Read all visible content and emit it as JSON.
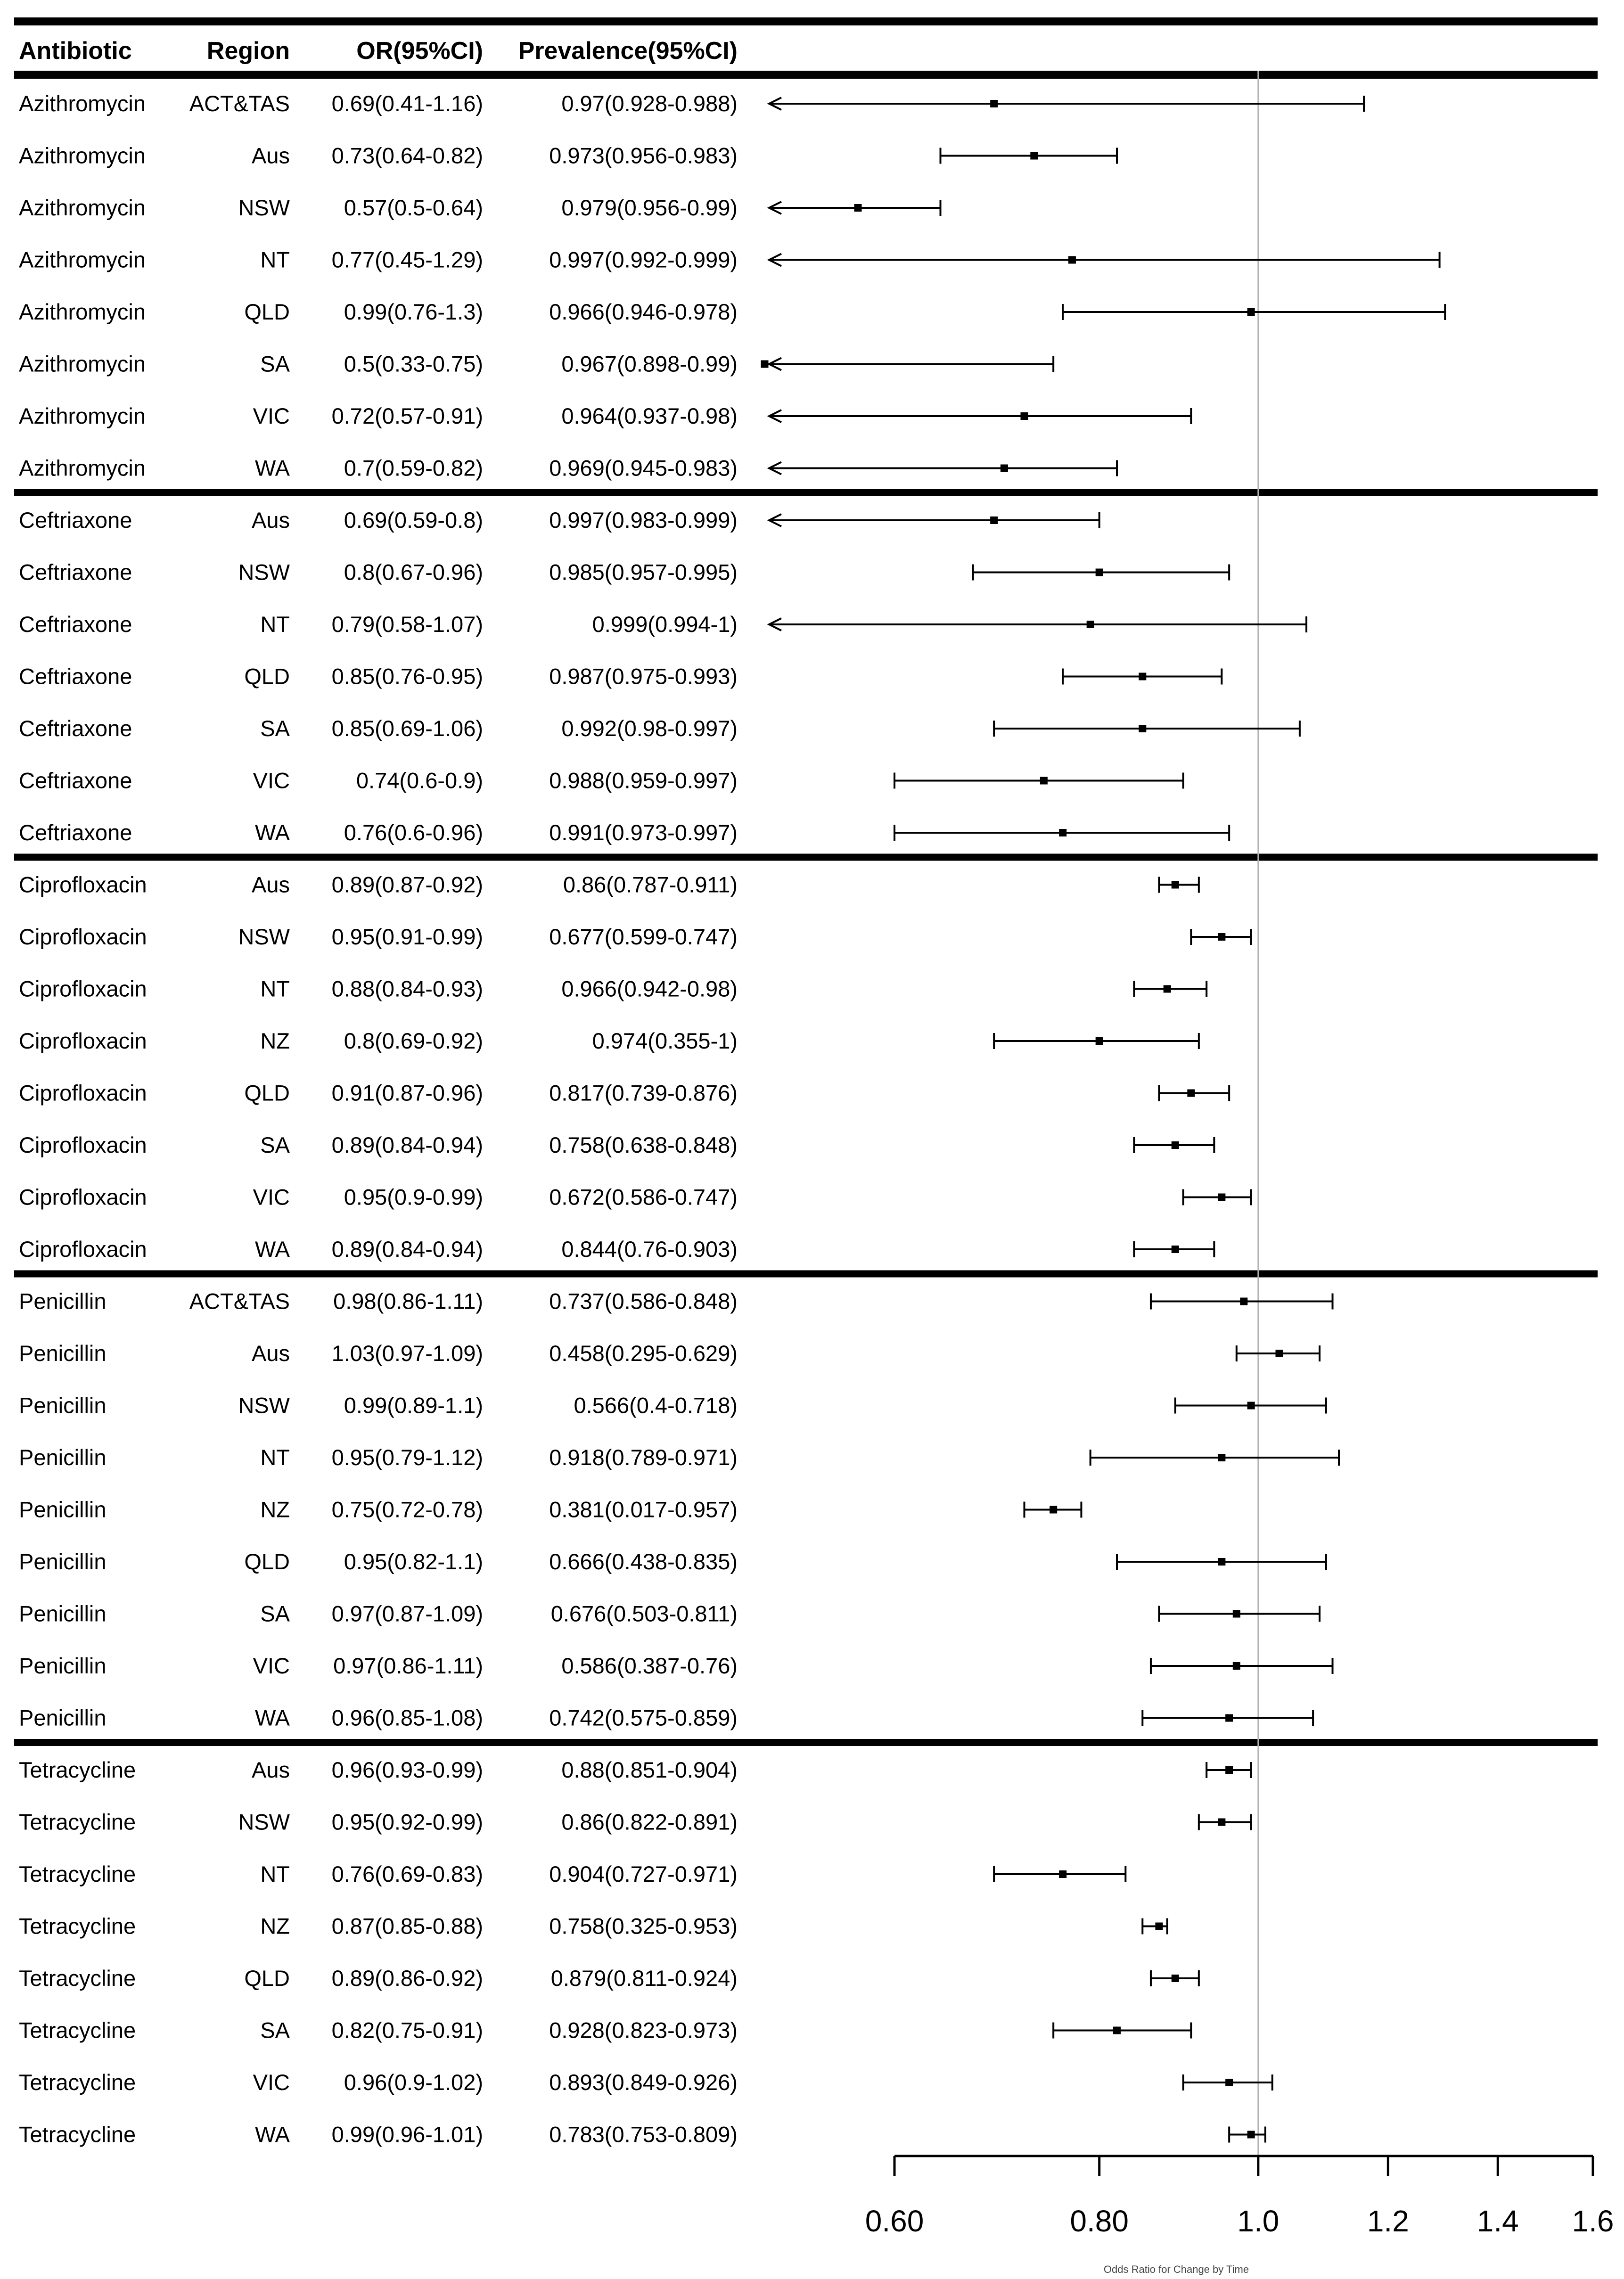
{
  "chart_data": {
    "type": "forest",
    "headers": [
      "Antibiotic",
      "Region",
      "OR(95%CI)",
      "Prevalence(95%CI)"
    ],
    "xlabel": "Odds Ratio for Change by Time",
    "x_scale": "log",
    "xlim": [
      0.6,
      1.6
    ],
    "reference_line": 1.0,
    "ticks": [
      {
        "value": 0.6,
        "label": "0.60"
      },
      {
        "value": 0.8,
        "label": "0.80"
      },
      {
        "value": 1.0,
        "label": "1.0"
      },
      {
        "value": 1.2,
        "label": "1.2"
      },
      {
        "value": 1.4,
        "label": "1.4"
      },
      {
        "value": 1.6,
        "label": "1.6"
      }
    ],
    "rows": [
      {
        "antibiotic": "Azithromycin",
        "region": "ACT&TAS",
        "or_text": "0.69(0.41-1.16)",
        "prev_text": "0.97(0.928-0.988)",
        "or": 0.69,
        "lo": 0.41,
        "hi": 1.16
      },
      {
        "antibiotic": "Azithromycin",
        "region": "Aus",
        "or_text": "0.73(0.64-0.82)",
        "prev_text": "0.973(0.956-0.983)",
        "or": 0.73,
        "lo": 0.64,
        "hi": 0.82
      },
      {
        "antibiotic": "Azithromycin",
        "region": "NSW",
        "or_text": "0.57(0.5-0.64)",
        "prev_text": "0.979(0.956-0.99)",
        "or": 0.57,
        "lo": 0.5,
        "hi": 0.64
      },
      {
        "antibiotic": "Azithromycin",
        "region": "NT",
        "or_text": "0.77(0.45-1.29)",
        "prev_text": "0.997(0.992-0.999)",
        "or": 0.77,
        "lo": 0.45,
        "hi": 1.29
      },
      {
        "antibiotic": "Azithromycin",
        "region": "QLD",
        "or_text": "0.99(0.76-1.3)",
        "prev_text": "0.966(0.946-0.978)",
        "or": 0.99,
        "lo": 0.76,
        "hi": 1.3
      },
      {
        "antibiotic": "Azithromycin",
        "region": "SA",
        "or_text": "0.5(0.33-0.75)",
        "prev_text": "0.967(0.898-0.99)",
        "or": 0.5,
        "lo": 0.33,
        "hi": 0.75
      },
      {
        "antibiotic": "Azithromycin",
        "region": "VIC",
        "or_text": "0.72(0.57-0.91)",
        "prev_text": "0.964(0.937-0.98)",
        "or": 0.72,
        "lo": 0.57,
        "hi": 0.91
      },
      {
        "antibiotic": "Azithromycin",
        "region": "WA",
        "or_text": "0.7(0.59-0.82)",
        "prev_text": "0.969(0.945-0.983)",
        "or": 0.7,
        "lo": 0.59,
        "hi": 0.82
      },
      {
        "antibiotic": "Ceftriaxone",
        "region": "Aus",
        "or_text": "0.69(0.59-0.8)",
        "prev_text": "0.997(0.983-0.999)",
        "or": 0.69,
        "lo": 0.59,
        "hi": 0.8
      },
      {
        "antibiotic": "Ceftriaxone",
        "region": "NSW",
        "or_text": "0.8(0.67-0.96)",
        "prev_text": "0.985(0.957-0.995)",
        "or": 0.8,
        "lo": 0.67,
        "hi": 0.96
      },
      {
        "antibiotic": "Ceftriaxone",
        "region": "NT",
        "or_text": "0.79(0.58-1.07)",
        "prev_text": "0.999(0.994-1)",
        "or": 0.79,
        "lo": 0.58,
        "hi": 1.07
      },
      {
        "antibiotic": "Ceftriaxone",
        "region": "QLD",
        "or_text": "0.85(0.76-0.95)",
        "prev_text": "0.987(0.975-0.993)",
        "or": 0.85,
        "lo": 0.76,
        "hi": 0.95
      },
      {
        "antibiotic": "Ceftriaxone",
        "region": "SA",
        "or_text": "0.85(0.69-1.06)",
        "prev_text": "0.992(0.98-0.997)",
        "or": 0.85,
        "lo": 0.69,
        "hi": 1.06
      },
      {
        "antibiotic": "Ceftriaxone",
        "region": "VIC",
        "or_text": "0.74(0.6-0.9)",
        "prev_text": "0.988(0.959-0.997)",
        "or": 0.74,
        "lo": 0.6,
        "hi": 0.9
      },
      {
        "antibiotic": "Ceftriaxone",
        "region": "WA",
        "or_text": "0.76(0.6-0.96)",
        "prev_text": "0.991(0.973-0.997)",
        "or": 0.76,
        "lo": 0.6,
        "hi": 0.96
      },
      {
        "antibiotic": "Ciprofloxacin",
        "region": "Aus",
        "or_text": "0.89(0.87-0.92)",
        "prev_text": "0.86(0.787-0.911)",
        "or": 0.89,
        "lo": 0.87,
        "hi": 0.92
      },
      {
        "antibiotic": "Ciprofloxacin",
        "region": "NSW",
        "or_text": "0.95(0.91-0.99)",
        "prev_text": "0.677(0.599-0.747)",
        "or": 0.95,
        "lo": 0.91,
        "hi": 0.99
      },
      {
        "antibiotic": "Ciprofloxacin",
        "region": "NT",
        "or_text": "0.88(0.84-0.93)",
        "prev_text": "0.966(0.942-0.98)",
        "or": 0.88,
        "lo": 0.84,
        "hi": 0.93
      },
      {
        "antibiotic": "Ciprofloxacin",
        "region": "NZ",
        "or_text": "0.8(0.69-0.92)",
        "prev_text": "0.974(0.355-1)",
        "or": 0.8,
        "lo": 0.69,
        "hi": 0.92
      },
      {
        "antibiotic": "Ciprofloxacin",
        "region": "QLD",
        "or_text": "0.91(0.87-0.96)",
        "prev_text": "0.817(0.739-0.876)",
        "or": 0.91,
        "lo": 0.87,
        "hi": 0.96
      },
      {
        "antibiotic": "Ciprofloxacin",
        "region": "SA",
        "or_text": "0.89(0.84-0.94)",
        "prev_text": "0.758(0.638-0.848)",
        "or": 0.89,
        "lo": 0.84,
        "hi": 0.94
      },
      {
        "antibiotic": "Ciprofloxacin",
        "region": "VIC",
        "or_text": "0.95(0.9-0.99)",
        "prev_text": "0.672(0.586-0.747)",
        "or": 0.95,
        "lo": 0.9,
        "hi": 0.99
      },
      {
        "antibiotic": "Ciprofloxacin",
        "region": "WA",
        "or_text": "0.89(0.84-0.94)",
        "prev_text": "0.844(0.76-0.903)",
        "or": 0.89,
        "lo": 0.84,
        "hi": 0.94
      },
      {
        "antibiotic": "Penicillin",
        "region": "ACT&TAS",
        "or_text": "0.98(0.86-1.11)",
        "prev_text": "0.737(0.586-0.848)",
        "or": 0.98,
        "lo": 0.86,
        "hi": 1.11
      },
      {
        "antibiotic": "Penicillin",
        "region": "Aus",
        "or_text": "1.03(0.97-1.09)",
        "prev_text": "0.458(0.295-0.629)",
        "or": 1.03,
        "lo": 0.97,
        "hi": 1.09
      },
      {
        "antibiotic": "Penicillin",
        "region": "NSW",
        "or_text": "0.99(0.89-1.1)",
        "prev_text": "0.566(0.4-0.718)",
        "or": 0.99,
        "lo": 0.89,
        "hi": 1.1
      },
      {
        "antibiotic": "Penicillin",
        "region": "NT",
        "or_text": "0.95(0.79-1.12)",
        "prev_text": "0.918(0.789-0.971)",
        "or": 0.95,
        "lo": 0.79,
        "hi": 1.12
      },
      {
        "antibiotic": "Penicillin",
        "region": "NZ",
        "or_text": "0.75(0.72-0.78)",
        "prev_text": "0.381(0.017-0.957)",
        "or": 0.75,
        "lo": 0.72,
        "hi": 0.78
      },
      {
        "antibiotic": "Penicillin",
        "region": "QLD",
        "or_text": "0.95(0.82-1.1)",
        "prev_text": "0.666(0.438-0.835)",
        "or": 0.95,
        "lo": 0.82,
        "hi": 1.1
      },
      {
        "antibiotic": "Penicillin",
        "region": "SA",
        "or_text": "0.97(0.87-1.09)",
        "prev_text": "0.676(0.503-0.811)",
        "or": 0.97,
        "lo": 0.87,
        "hi": 1.09
      },
      {
        "antibiotic": "Penicillin",
        "region": "VIC",
        "or_text": "0.97(0.86-1.11)",
        "prev_text": "0.586(0.387-0.76)",
        "or": 0.97,
        "lo": 0.86,
        "hi": 1.11
      },
      {
        "antibiotic": "Penicillin",
        "region": "WA",
        "or_text": "0.96(0.85-1.08)",
        "prev_text": "0.742(0.575-0.859)",
        "or": 0.96,
        "lo": 0.85,
        "hi": 1.08
      },
      {
        "antibiotic": "Tetracycline",
        "region": "Aus",
        "or_text": "0.96(0.93-0.99)",
        "prev_text": "0.88(0.851-0.904)",
        "or": 0.96,
        "lo": 0.93,
        "hi": 0.99
      },
      {
        "antibiotic": "Tetracycline",
        "region": "NSW",
        "or_text": "0.95(0.92-0.99)",
        "prev_text": "0.86(0.822-0.891)",
        "or": 0.95,
        "lo": 0.92,
        "hi": 0.99
      },
      {
        "antibiotic": "Tetracycline",
        "region": "NT",
        "or_text": "0.76(0.69-0.83)",
        "prev_text": "0.904(0.727-0.971)",
        "or": 0.76,
        "lo": 0.69,
        "hi": 0.83
      },
      {
        "antibiotic": "Tetracycline",
        "region": "NZ",
        "or_text": "0.87(0.85-0.88)",
        "prev_text": "0.758(0.325-0.953)",
        "or": 0.87,
        "lo": 0.85,
        "hi": 0.88
      },
      {
        "antibiotic": "Tetracycline",
        "region": "QLD",
        "or_text": "0.89(0.86-0.92)",
        "prev_text": "0.879(0.811-0.924)",
        "or": 0.89,
        "lo": 0.86,
        "hi": 0.92
      },
      {
        "antibiotic": "Tetracycline",
        "region": "SA",
        "or_text": "0.82(0.75-0.91)",
        "prev_text": "0.928(0.823-0.973)",
        "or": 0.82,
        "lo": 0.75,
        "hi": 0.91
      },
      {
        "antibiotic": "Tetracycline",
        "region": "VIC",
        "or_text": "0.96(0.9-1.02)",
        "prev_text": "0.893(0.849-0.926)",
        "or": 0.96,
        "lo": 0.9,
        "hi": 1.02
      },
      {
        "antibiotic": "Tetracycline",
        "region": "WA",
        "or_text": "0.99(0.96-1.01)",
        "prev_text": "0.783(0.753-0.809)",
        "or": 0.99,
        "lo": 0.96,
        "hi": 1.01
      }
    ]
  }
}
